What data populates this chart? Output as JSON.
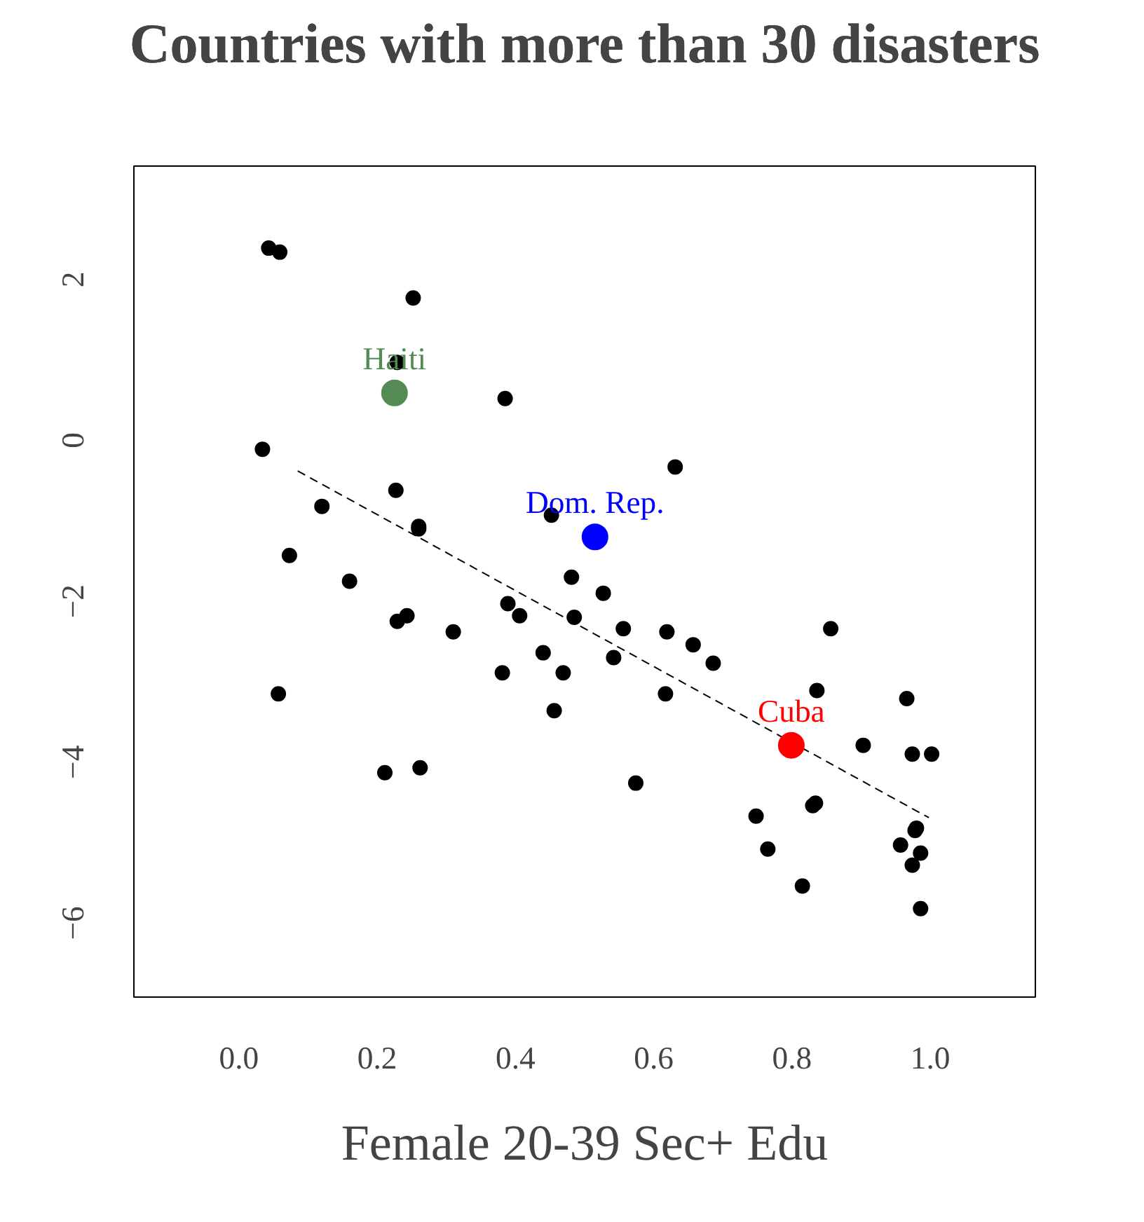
{
  "chart_data": {
    "type": "scatter",
    "title": "Countries with more than 30 disasters",
    "xlabel": "Female 20-39 Sec+ Edu",
    "xlim": [
      -0.152,
      1.152
    ],
    "ylim": [
      -6.92,
      3.41
    ],
    "xticks": [
      {
        "value": 0,
        "label": "0.0"
      },
      {
        "value": 0.2,
        "label": "0.2"
      },
      {
        "value": 0.4,
        "label": "0.4"
      },
      {
        "value": 0.6,
        "label": "0.6"
      },
      {
        "value": 0.8,
        "label": "0.8"
      },
      {
        "value": 1,
        "label": "1.0"
      }
    ],
    "yticks": [
      -6,
      -4,
      -2,
      0,
      2
    ],
    "grid": false,
    "legend": false,
    "marker": "circle",
    "series": [
      {
        "color": "#000000",
        "x": [
          0.043,
          0.059,
          0.252,
          0.229,
          0.385,
          0.034,
          0.631,
          0.227,
          0.12,
          0.26,
          0.26,
          0.452,
          0.073,
          0.16,
          0.481,
          0.229,
          0.243,
          0.31,
          0.389,
          0.406,
          0.485,
          0.44,
          0.381,
          0.469,
          0.456,
          0.057,
          0.211,
          0.262,
          0.527,
          0.556,
          0.619,
          0.657,
          0.686,
          0.542,
          0.617,
          0.856,
          0.836,
          0.966,
          0.903,
          0.974,
          1.002,
          0.574,
          0.748,
          0.834,
          0.83,
          0.765,
          0.98,
          0.978,
          0.957,
          0.986,
          0.974,
          0.815,
          0.986
        ],
        "values": [
          2.39,
          2.34,
          1.77,
          0.97,
          0.52,
          -0.11,
          -0.33,
          -0.62,
          -0.82,
          -1.07,
          -1.1,
          -0.93,
          -1.43,
          -1.75,
          -1.7,
          -2.25,
          -2.18,
          -2.38,
          -2.03,
          -2.18,
          -2.2,
          -2.64,
          -2.89,
          -2.89,
          -3.36,
          -3.15,
          -4.13,
          -4.07,
          -1.9,
          -2.34,
          -2.38,
          -2.54,
          -2.77,
          -2.7,
          -3.15,
          -2.34,
          -3.11,
          -3.21,
          -3.79,
          -3.9,
          -3.9,
          -4.26,
          -4.67,
          -4.51,
          -4.54,
          -5.08,
          -4.82,
          -4.85,
          -5.03,
          -5.13,
          -5.28,
          -5.54,
          -5.82
        ]
      },
      {
        "type": "line",
        "color": "#000000",
        "line_style": "dashed",
        "marker": "none",
        "x": [
          0.085,
          0.998
        ],
        "values": [
          -0.38,
          -4.69
        ]
      },
      {
        "name": "Haiti",
        "color": "#548b54",
        "x": [
          0.225
        ],
        "values": [
          0.59
        ]
      },
      {
        "name": "Dom. Rep.",
        "color": "#0000ff",
        "x": [
          0.515
        ],
        "values": [
          -1.2
        ]
      },
      {
        "name": "Cuba",
        "color": "#ff0000",
        "x": [
          0.799
        ],
        "values": [
          -3.79
        ]
      }
    ]
  }
}
